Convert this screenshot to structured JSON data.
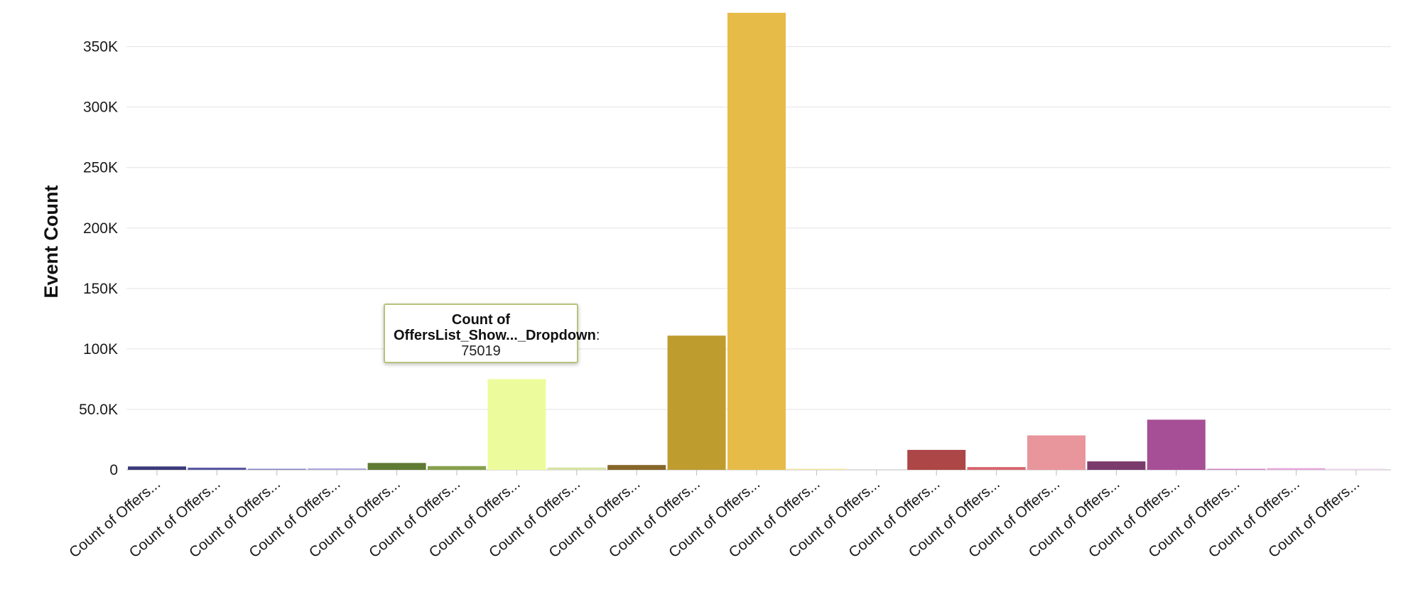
{
  "chart_data": {
    "type": "bar",
    "ylabel": "Event Count",
    "ylim": [
      0,
      378000
    ],
    "y_ticks": [
      {
        "value": 0,
        "label": "0"
      },
      {
        "value": 50000,
        "label": "50.0K"
      },
      {
        "value": 100000,
        "label": "100K"
      },
      {
        "value": 150000,
        "label": "150K"
      },
      {
        "value": 200000,
        "label": "200K"
      },
      {
        "value": 250000,
        "label": "250K"
      },
      {
        "value": 300000,
        "label": "300K"
      },
      {
        "value": 350000,
        "label": "350K"
      }
    ],
    "grid": true,
    "legend": "none",
    "categories": [
      "Count of Offers...",
      "Count of Offers...",
      "Count of Offers...",
      "Count of Offers...",
      "Count of Offers...",
      "Count of Offers...",
      "Count of Offers...",
      "Count of Offers...",
      "Count of Offers...",
      "Count of Offers...",
      "Count of Offers...",
      "Count of Offers...",
      "Count of Offers...",
      "Count of Offers...",
      "Count of Offers...",
      "Count of Offers...",
      "Count of Offers...",
      "Count of Offers...",
      "Count of Offers...",
      "Count of Offers...",
      "Count of Offers..."
    ],
    "values": [
      2800,
      1800,
      600,
      1200,
      5700,
      3100,
      75019,
      2000,
      4000,
      111000,
      378000,
      400,
      0,
      16500,
      2300,
      28500,
      7000,
      41500,
      600,
      1400,
      500
    ],
    "colors": [
      "#3b3a7a",
      "#5a58a3",
      "#8584c4",
      "#a9a7dc",
      "#5f7a32",
      "#86a04d",
      "#ecfc9c",
      "#d6e3a6",
      "#86662a",
      "#bf9c2e",
      "#e7bb48",
      "#f3e6a0",
      "#eee3c4",
      "#ad4646",
      "#d9666e",
      "#e8969c",
      "#7b3a6c",
      "#a64f96",
      "#cf86c4",
      "#e5a8dc",
      "#ead6ea"
    ],
    "tooltip": {
      "name": "Count of OffersList_Show..._Dropdown",
      "value": "75019",
      "category_index": 6
    }
  }
}
